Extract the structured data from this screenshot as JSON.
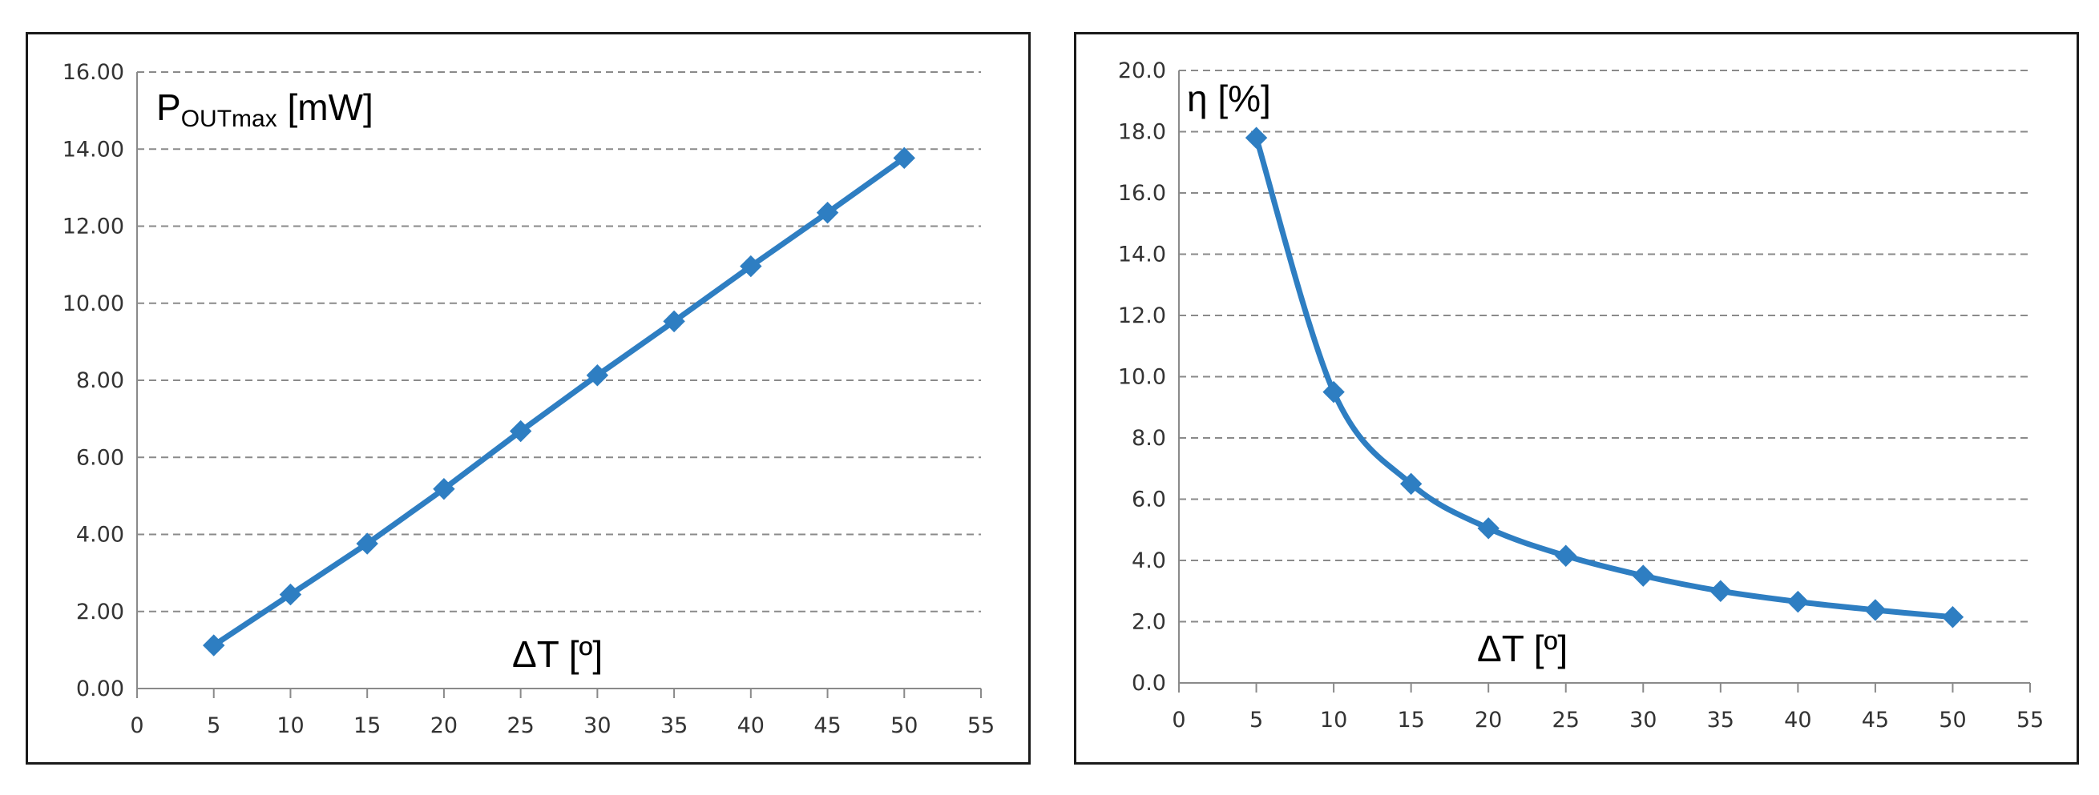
{
  "colors": {
    "series": "#2e7ec2",
    "grid": "#8a8a8a",
    "axis": "#8a8a8a",
    "frame": "#1a1a1a"
  },
  "chart_data": [
    {
      "type": "line",
      "ylabel_main": "P",
      "ylabel_sub": "OUTmax",
      "ylabel_unit": " [mW]",
      "xlabel": "ΔT [º]",
      "xlim": [
        0,
        55
      ],
      "ylim": [
        0,
        16
      ],
      "xticks": [
        "0",
        "5",
        "10",
        "15",
        "20",
        "25",
        "30",
        "35",
        "40",
        "45",
        "50",
        "55"
      ],
      "yticks": [
        "0.00",
        "2.00",
        "4.00",
        "6.00",
        "8.00",
        "10.00",
        "12.00",
        "14.00",
        "16.00"
      ],
      "grid": true,
      "marker": "diamond",
      "x": [
        5,
        10,
        15,
        20,
        25,
        30,
        35,
        40,
        45,
        50
      ],
      "y": [
        1.12,
        2.44,
        3.76,
        5.18,
        6.68,
        8.13,
        9.53,
        10.96,
        12.35,
        13.77
      ]
    },
    {
      "type": "line",
      "ylabel": "η [%]",
      "xlabel": "ΔT [º]",
      "xlim": [
        0,
        55
      ],
      "ylim": [
        0,
        20
      ],
      "xticks": [
        "0",
        "5",
        "10",
        "15",
        "20",
        "25",
        "30",
        "35",
        "40",
        "45",
        "50",
        "55"
      ],
      "yticks": [
        "0.0",
        "2.0",
        "4.0",
        "6.0",
        "8.0",
        "10.0",
        "12.0",
        "14.0",
        "16.0",
        "18.0",
        "20.0"
      ],
      "grid": true,
      "marker": "diamond",
      "smooth": true,
      "x": [
        5,
        10,
        15,
        20,
        25,
        30,
        35,
        40,
        45,
        50
      ],
      "y": [
        17.8,
        9.5,
        6.5,
        5.05,
        4.15,
        3.5,
        3.0,
        2.65,
        2.38,
        2.15
      ]
    }
  ]
}
